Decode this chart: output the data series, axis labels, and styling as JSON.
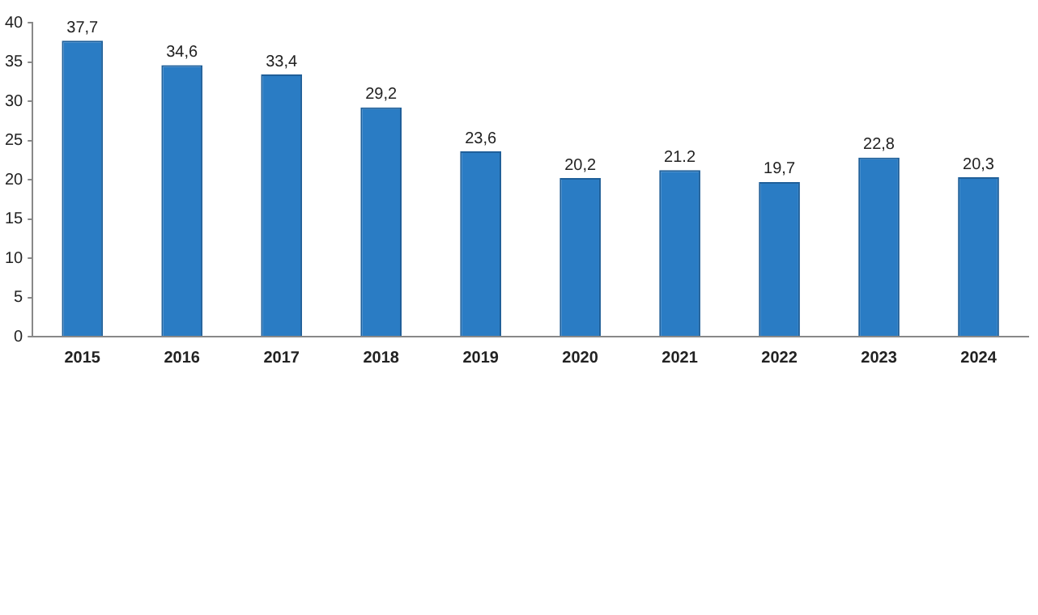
{
  "chart_data": {
    "type": "bar",
    "categories": [
      "2015",
      "2016",
      "2017",
      "2018",
      "2019",
      "2020",
      "2021",
      "2022",
      "2023",
      "2024"
    ],
    "values": [
      37.7,
      34.6,
      33.4,
      29.2,
      23.6,
      20.2,
      21.2,
      19.7,
      22.8,
      20.3
    ],
    "value_labels": [
      "37,7",
      "34,6",
      "33,4",
      "29,2",
      "23,6",
      "20,2",
      "21.2",
      "19,7",
      "22,8",
      "20,3"
    ],
    "color": "#2a7cc4",
    "ylim": [
      0,
      40
    ],
    "yticks": [
      0,
      5,
      10,
      15,
      20,
      25,
      30,
      35,
      40
    ],
    "grid": false,
    "legend": false
  }
}
